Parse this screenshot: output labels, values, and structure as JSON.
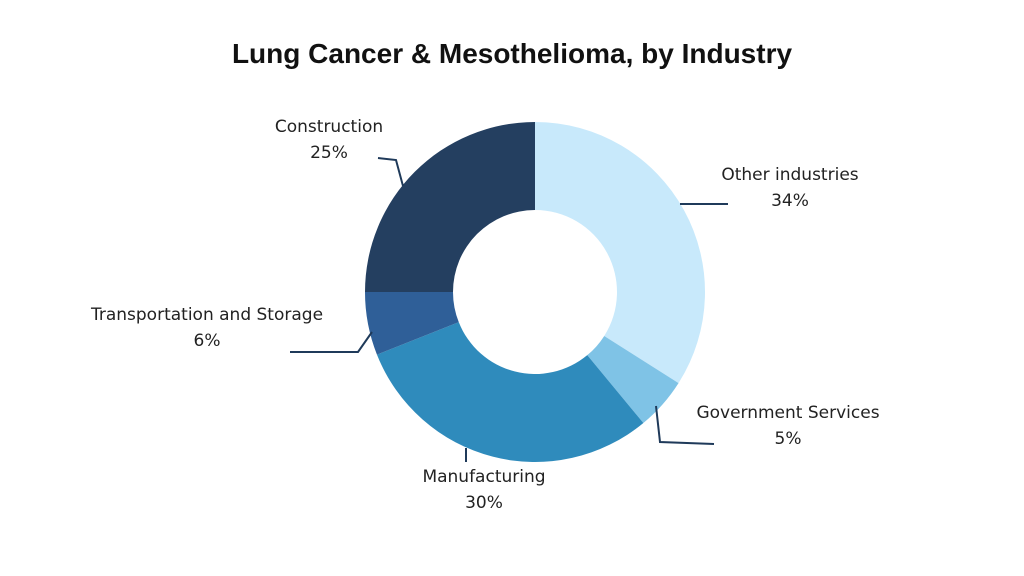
{
  "chart_data": {
    "type": "pie",
    "title": "Lung Cancer & Mesothelioma, by Industry",
    "donut": true,
    "slices": [
      {
        "name": "Other industries",
        "value": 34,
        "label": "34%",
        "color": "#c8e9fb"
      },
      {
        "name": "Government Services",
        "value": 5,
        "label": "5%",
        "color": "#7fc3e6"
      },
      {
        "name": "Manufacturing",
        "value": 30,
        "label": "30%",
        "color": "#2f8bbc"
      },
      {
        "name": "Transportation and Storage",
        "value": 6,
        "label": "6%",
        "color": "#2f5f98"
      },
      {
        "name": "Construction",
        "value": 25,
        "label": "25%",
        "color": "#243f60"
      }
    ]
  }
}
